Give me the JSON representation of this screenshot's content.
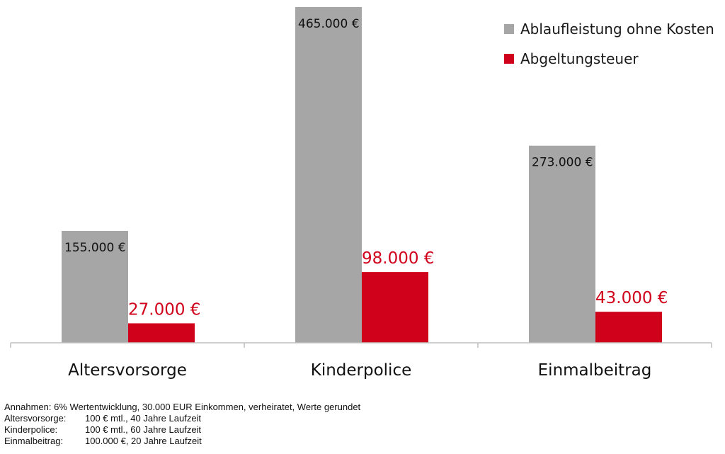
{
  "chart_data": {
    "type": "bar",
    "categories": [
      "Altersvorsorge",
      "Kinderpolice",
      "Einmalbeitrag"
    ],
    "series": [
      {
        "name": "Ablaufleistung ohne Kosten",
        "color": "#a6a6a6",
        "values": [
          155000,
          465000,
          273000
        ],
        "labels": [
          "155.000 €",
          "465.000 €",
          "273.000 €"
        ]
      },
      {
        "name": "Abgeltungsteuer",
        "color": "#d0021b",
        "values": [
          27000,
          98000,
          43000
        ],
        "labels": [
          "27.000 €",
          "98.000 €",
          "43.000 €"
        ]
      }
    ],
    "ylim": [
      0,
      500000
    ],
    "grid": false,
    "legend": "top-right"
  },
  "notes": {
    "intro": "Annahmen: 6% Wertentwicklung, 30.000 EUR Einkommen, verheiratet, Werte gerundet",
    "rows": [
      {
        "label": "Altersvorsorge:",
        "text": "100 € mtl., 40 Jahre Laufzeit"
      },
      {
        "label": "Kinderpolice:",
        "text": "100 € mtl., 60 Jahre Laufzeit"
      },
      {
        "label": "Einmalbeitrag:",
        "text": "100.000 €, 20 Jahre Laufzeit"
      }
    ]
  }
}
